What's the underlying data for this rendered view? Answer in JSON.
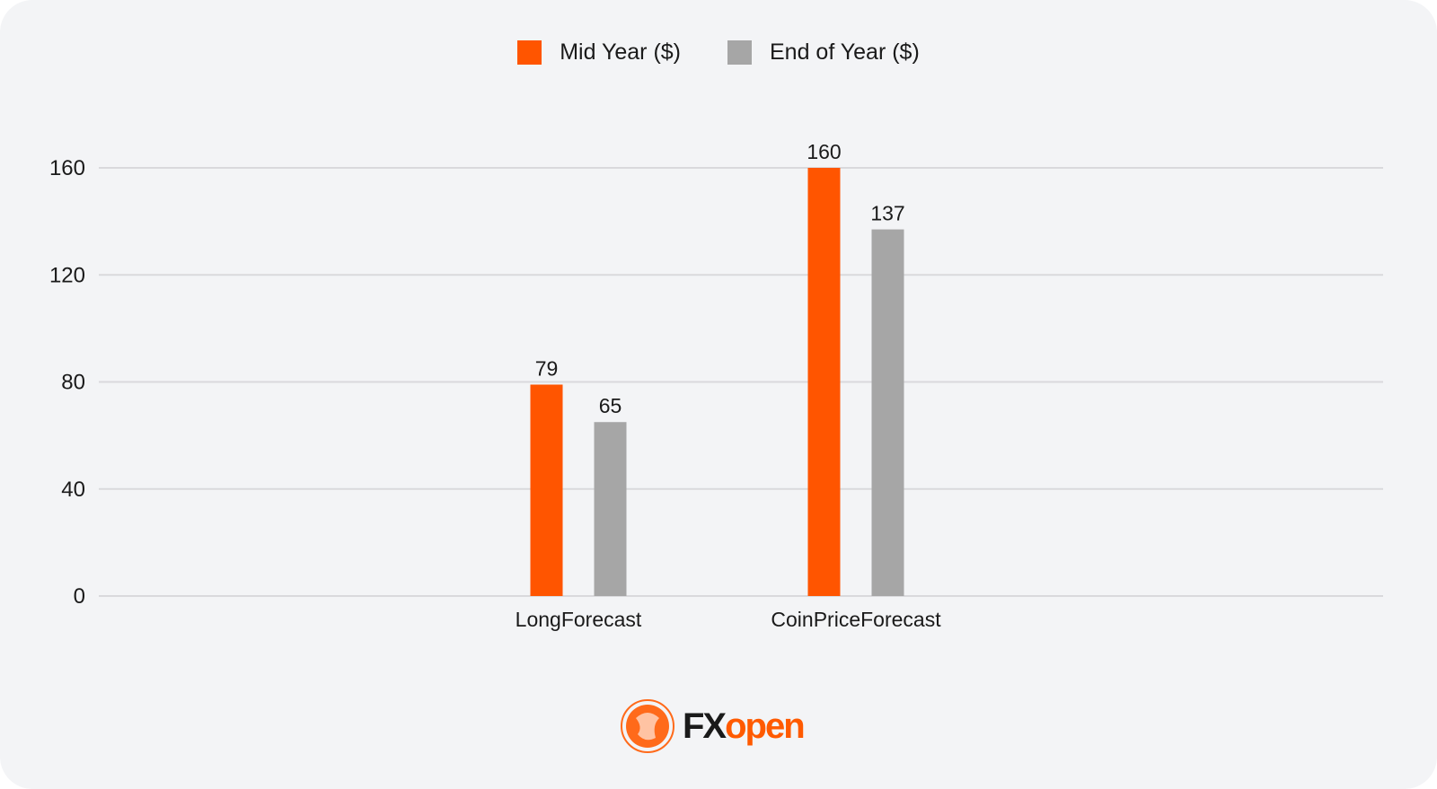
{
  "chart_data": {
    "type": "bar",
    "categories": [
      "LongForecast",
      "CoinPriceForecast"
    ],
    "series": [
      {
        "name": "Mid Year ($)",
        "values": [
          79,
          160
        ],
        "color": "#ff5500"
      },
      {
        "name": "End of Year ($)",
        "values": [
          65,
          137
        ],
        "color": "#a6a6a6"
      }
    ],
    "yticks": [
      0,
      40,
      80,
      120,
      160
    ],
    "ylim": [
      0,
      160
    ],
    "grid": true,
    "legend_position": "top-center",
    "title": "",
    "xlabel": "",
    "ylabel": ""
  },
  "logo": {
    "part1": "FX",
    "part2": "open"
  }
}
